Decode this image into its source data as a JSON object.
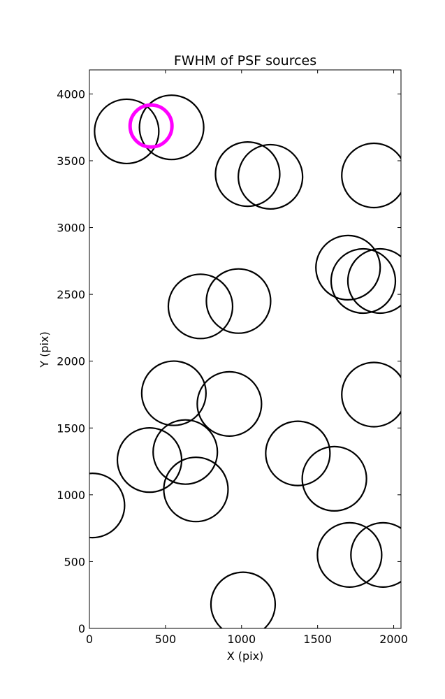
{
  "chart_data": {
    "type": "scatter",
    "title": "FWHM of PSF sources",
    "xlabel": "X (pix)",
    "ylabel": "Y (pix)",
    "xlim": [
      0,
      2048
    ],
    "ylim": [
      0,
      4180
    ],
    "xticks": [
      0,
      500,
      1000,
      1500,
      2000
    ],
    "yticks": [
      0,
      500,
      1000,
      1500,
      2000,
      2500,
      3000,
      3500,
      4000
    ],
    "grid": false,
    "marker": "circle",
    "series": [
      {
        "color": "#000000",
        "points": [
          {
            "x": 245,
            "y": 3720
          },
          {
            "x": 540,
            "y": 3750
          },
          {
            "x": 1040,
            "y": 3400
          },
          {
            "x": 1190,
            "y": 3380
          },
          {
            "x": 1870,
            "y": 3390
          },
          {
            "x": 1700,
            "y": 2700
          },
          {
            "x": 1800,
            "y": 2600
          },
          {
            "x": 1910,
            "y": 2600
          },
          {
            "x": 730,
            "y": 2410
          },
          {
            "x": 980,
            "y": 2450
          },
          {
            "x": 555,
            "y": 1760
          },
          {
            "x": 920,
            "y": 1680
          },
          {
            "x": 1870,
            "y": 1750
          },
          {
            "x": 395,
            "y": 1260
          },
          {
            "x": 630,
            "y": 1320
          },
          {
            "x": 700,
            "y": 1040
          },
          {
            "x": 1370,
            "y": 1310
          },
          {
            "x": 1610,
            "y": 1120
          },
          {
            "x": 20,
            "y": 920
          },
          {
            "x": 1710,
            "y": 550
          },
          {
            "x": 1930,
            "y": 550
          },
          {
            "x": 1010,
            "y": 180
          }
        ]
      },
      {
        "color": "#ff00ff",
        "points": [
          {
            "x": 405,
            "y": 3760
          }
        ]
      }
    ]
  }
}
